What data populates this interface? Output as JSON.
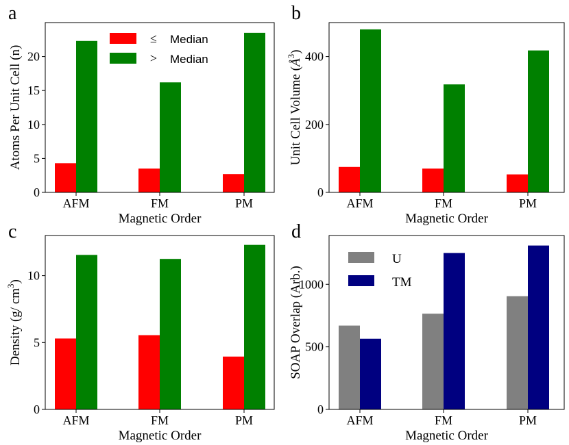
{
  "figure": {
    "legend_marks": {
      "le": "≤",
      "gt": ">"
    }
  },
  "chart_data": [
    {
      "id": "a",
      "panel_label": "a",
      "type": "bar",
      "title": "",
      "xlabel": "Magnetic Order",
      "ylabel": "Atoms Per Unit Cell (n)",
      "categories": [
        "AFM",
        "FM",
        "PM"
      ],
      "ylim": [
        0,
        25
      ],
      "yticks": [
        0,
        5,
        10,
        15,
        20
      ],
      "legend_position": "top-center",
      "series": [
        {
          "name": "≤ Median",
          "legend_label": "Median",
          "legend_symbol": "le",
          "color": "#ff0000",
          "values": [
            4.3,
            3.5,
            2.7
          ]
        },
        {
          "name": "> Median",
          "legend_label": "Median",
          "legend_symbol": "gt",
          "color": "#008000",
          "values": [
            22.3,
            16.2,
            23.5
          ]
        }
      ]
    },
    {
      "id": "b",
      "panel_label": "b",
      "type": "bar",
      "title": "",
      "xlabel": "Magnetic Order",
      "ylabel": "Unit Cell Volume (Å³)",
      "ylabel_base": "Unit Cell Volume (",
      "ylabel_unit": "Å",
      "ylabel_exp": "3",
      "ylabel_close": ")",
      "categories": [
        "AFM",
        "FM",
        "PM"
      ],
      "ylim": [
        0,
        500
      ],
      "yticks": [
        0,
        200,
        400
      ],
      "series": [
        {
          "name": "≤ Median",
          "color": "#ff0000",
          "values": [
            75,
            70,
            53
          ]
        },
        {
          "name": "> Median",
          "color": "#008000",
          "values": [
            480,
            318,
            418
          ]
        }
      ]
    },
    {
      "id": "c",
      "panel_label": "c",
      "type": "bar",
      "title": "",
      "xlabel": "Magnetic Order",
      "ylabel": "Density (g/ cm³)",
      "ylabel_base": "Density (g/ cm",
      "ylabel_exp": "3",
      "ylabel_close": ")",
      "categories": [
        "AFM",
        "FM",
        "PM"
      ],
      "ylim": [
        0,
        13
      ],
      "yticks": [
        0,
        5,
        10
      ],
      "series": [
        {
          "name": "≤ Median",
          "color": "#ff0000",
          "values": [
            5.3,
            5.55,
            3.95
          ]
        },
        {
          "name": "> Median",
          "color": "#008000",
          "values": [
            11.55,
            11.25,
            12.3
          ]
        }
      ]
    },
    {
      "id": "d",
      "panel_label": "d",
      "type": "bar",
      "title": "",
      "xlabel": "Magnetic Order",
      "ylabel": "SOAP Overlap (Arb.)",
      "categories": [
        "AFM",
        "FM",
        "PM"
      ],
      "ylim": [
        0,
        1390
      ],
      "yticks": [
        0,
        500,
        1000
      ],
      "legend_position": "upper-left",
      "series": [
        {
          "name": "U",
          "legend_label": "U",
          "color": "#808080",
          "values": [
            670,
            765,
            905
          ]
        },
        {
          "name": "TM",
          "legend_label": "TM",
          "color": "#000080",
          "values": [
            565,
            1250,
            1310
          ]
        }
      ]
    }
  ]
}
